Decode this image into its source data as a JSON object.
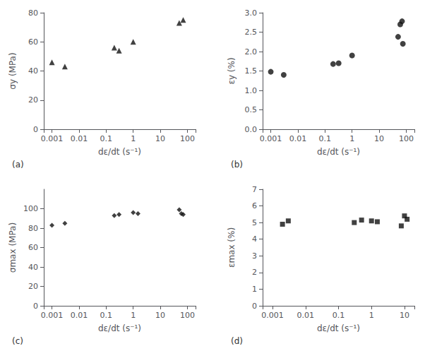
{
  "chart_data": [
    {
      "type": "scatter",
      "log": "x",
      "grid": false,
      "marker": "triangle",
      "color": "#111111",
      "xlabel": "dε/dt (s⁻¹)",
      "ylabel": "σy (MPa)",
      "annotation": "(a)",
      "xlim": [
        0.0005,
        200
      ],
      "xticks": [
        0.001,
        0.01,
        0.1,
        1,
        10,
        100
      ],
      "ylim": [
        0,
        80
      ],
      "yticks": [
        0,
        20,
        40,
        60,
        80
      ],
      "x": [
        0.001,
        0.003,
        0.2,
        0.3,
        1.0,
        50,
        70
      ],
      "values": [
        46,
        43,
        56,
        54,
        60,
        73,
        75
      ]
    },
    {
      "type": "scatter",
      "log": "x",
      "grid": false,
      "marker": "circle",
      "color": "#111111",
      "xlabel": "dε/dt (s⁻¹)",
      "ylabel": "εy (%)",
      "annotation": "(b)",
      "xlim": [
        0.0005,
        200
      ],
      "xticks": [
        0.001,
        0.01,
        0.1,
        1,
        10,
        100
      ],
      "ylim": [
        0,
        3
      ],
      "yticks": [
        {
          "value": 0,
          "label": "0.0"
        },
        0.5,
        {
          "value": 1,
          "label": "1.0"
        },
        1.5,
        {
          "value": 2,
          "label": "2.0"
        },
        2.5,
        {
          "value": 3,
          "label": "3.0"
        }
      ],
      "x": [
        0.001,
        0.003,
        0.2,
        0.32,
        1.0,
        50,
        60,
        70,
        75
      ],
      "values": [
        1.48,
        1.4,
        1.68,
        1.7,
        1.9,
        2.38,
        2.7,
        2.78,
        2.2
      ]
    },
    {
      "type": "scatter",
      "log": "x",
      "grid": false,
      "marker": "diamond",
      "color": "#111111",
      "xlabel": "dε/dt (s⁻¹)",
      "ylabel": "σmax (MPa)",
      "annotation": "(c)",
      "xlim": [
        0.0005,
        200
      ],
      "xticks": [
        0.001,
        0.01,
        0.1,
        1,
        10,
        100
      ],
      "ylim": [
        0,
        120
      ],
      "yticks": [
        0,
        20,
        40,
        60,
        80,
        100
      ],
      "x": [
        0.001,
        0.003,
        0.2,
        0.3,
        1.0,
        1.5,
        50,
        60,
        70
      ],
      "values": [
        83,
        85,
        93,
        94,
        96,
        95,
        99,
        95,
        94
      ]
    },
    {
      "type": "scatter",
      "log": "x",
      "grid": false,
      "marker": "square",
      "color": "#111111",
      "xlabel": "dε/dt (s⁻¹)",
      "ylabel": "εmax (%)",
      "annotation": "(d)",
      "xlim": [
        0.0005,
        20
      ],
      "xticks": [
        0.001,
        0.01,
        0.1,
        1,
        10
      ],
      "ylim": [
        0,
        7
      ],
      "yticks": [
        0,
        1,
        2,
        3,
        4,
        5,
        6,
        7
      ],
      "x": [
        0.002,
        0.003,
        0.3,
        0.5,
        1.0,
        1.5,
        8,
        10,
        12
      ],
      "values": [
        4.9,
        5.1,
        5.0,
        5.15,
        5.1,
        5.05,
        4.8,
        5.4,
        5.2
      ]
    }
  ]
}
